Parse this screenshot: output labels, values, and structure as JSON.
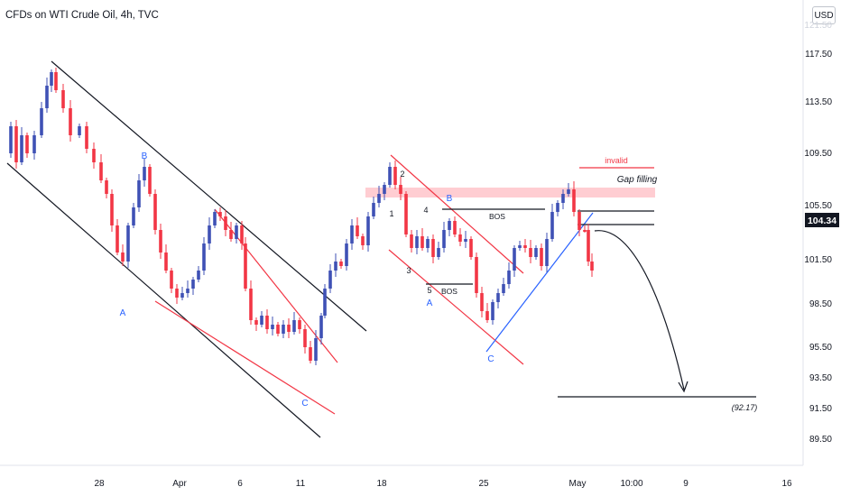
{
  "header": {
    "title": "CFDs on WTI Crude Oil, 4h, TVC",
    "currency_badge": "USD"
  },
  "chart_data": {
    "type": "candlestick",
    "ylim": [
      87.5,
      121.5
    ],
    "y_ticks": [
      "117.50",
      "113.50",
      "109.50",
      "105.50",
      "101.50",
      "98.50",
      "95.50",
      "93.50",
      "91.50",
      "89.50"
    ],
    "x_ticks": [
      "28",
      "Apr",
      "6",
      "11",
      "18",
      "25",
      "May",
      "10:00",
      "9",
      "16"
    ],
    "last_price": {
      "label": "104.34",
      "value": 104.34,
      "color": "#131722"
    },
    "colors": {
      "up": "#3f51b5",
      "down": "#f23645",
      "channel": "#131722",
      "wedge": "#f23645",
      "support": "#2962ff",
      "zone": "#ffcdd2"
    },
    "annotations": {
      "wave_labels": [
        "A",
        "B",
        "C",
        "A",
        "B",
        "C"
      ],
      "pattern_numbers": [
        "1",
        "2",
        "3",
        "4",
        "5"
      ],
      "bos_labels": [
        "BOS",
        "BOS"
      ],
      "invalid": "invalid",
      "gap_filling": "Gap filling",
      "target": "(92.17)"
    },
    "target_level": 92.17,
    "gap_zone": [
      105.9,
      106.8
    ]
  }
}
